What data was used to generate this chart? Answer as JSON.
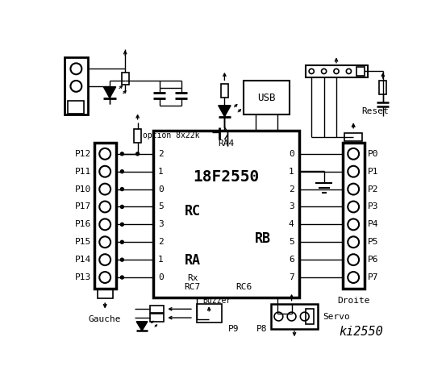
{
  "title": "ki2550",
  "bg_color": "#ffffff",
  "line_color": "#000000",
  "text_color": "#000000",
  "fs": 8,
  "fs_large": 13,
  "fs_med": 10,
  "left_pins": [
    "P12",
    "P11",
    "P10",
    "P17",
    "P16",
    "P15",
    "P14",
    "P13"
  ],
  "right_pins": [
    "P0",
    "P1",
    "P2",
    "P3",
    "P4",
    "P5",
    "P6",
    "P7"
  ],
  "rc_pins": [
    "2",
    "1",
    "0",
    "5",
    "3",
    "2",
    "1",
    "0"
  ],
  "rb_pins": [
    "0",
    "1",
    "2",
    "3",
    "4",
    "5",
    "6",
    "7"
  ]
}
